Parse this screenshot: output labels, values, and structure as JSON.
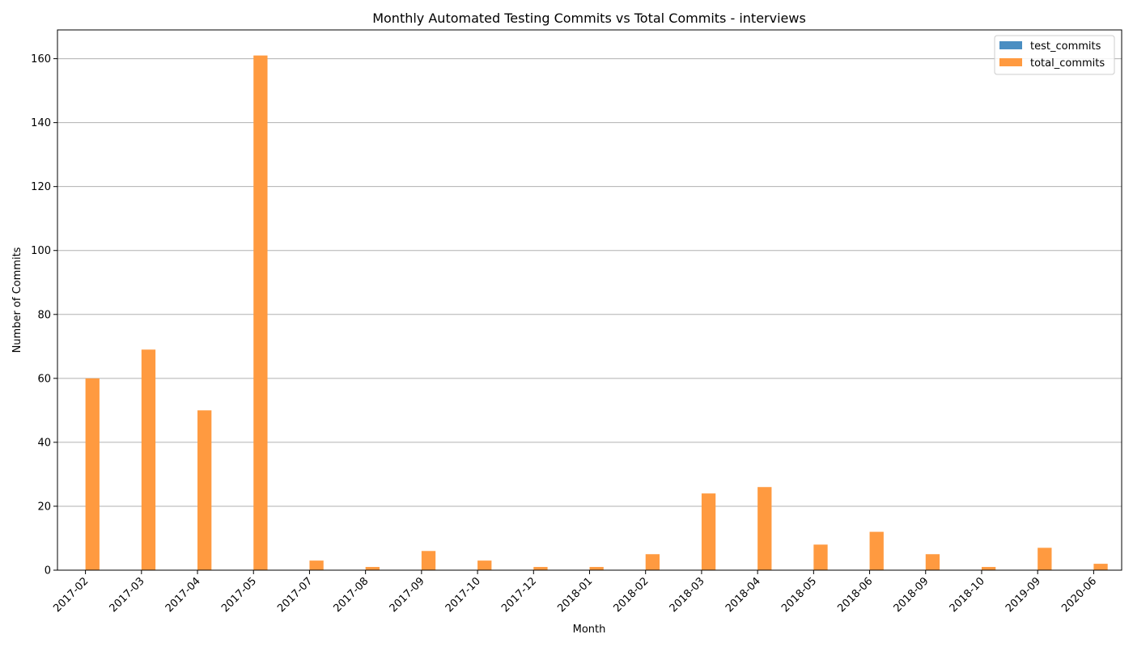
{
  "chart_data": {
    "type": "bar",
    "title": "Monthly Automated Testing Commits vs Total Commits - interviews",
    "xlabel": "Month",
    "ylabel": "Number of Commits",
    "ylim": [
      0,
      169
    ],
    "yticks": [
      0,
      20,
      40,
      60,
      80,
      100,
      120,
      140,
      160
    ],
    "grid": "horizontal",
    "legend_position": "top-right",
    "categories": [
      "2017-02",
      "2017-03",
      "2017-04",
      "2017-05",
      "2017-07",
      "2017-08",
      "2017-09",
      "2017-10",
      "2017-12",
      "2018-01",
      "2018-02",
      "2018-03",
      "2018-04",
      "2018-05",
      "2018-06",
      "2018-09",
      "2018-10",
      "2019-09",
      "2020-06"
    ],
    "series": [
      {
        "name": "test_commits",
        "color": "#4a8ec2",
        "values": [
          0,
          0,
          0,
          0,
          0,
          0,
          0,
          0,
          0,
          0,
          0,
          0,
          0,
          0,
          0,
          0,
          0,
          0,
          0
        ]
      },
      {
        "name": "total_commits",
        "color": "#ff9a40",
        "values": [
          60,
          69,
          50,
          161,
          3,
          1,
          6,
          3,
          1,
          1,
          5,
          24,
          26,
          8,
          12,
          5,
          1,
          7,
          2
        ]
      }
    ]
  }
}
